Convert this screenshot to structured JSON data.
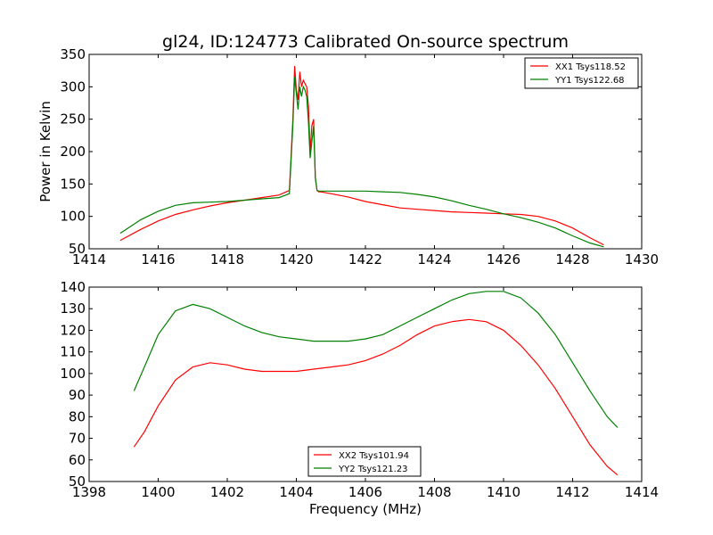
{
  "title": "gl24, ID:124773 Calibrated On-source spectrum",
  "chart_data": [
    {
      "type": "line",
      "ylabel": "Power in Kelvin",
      "xlabel": "",
      "xlim": [
        1414,
        1430
      ],
      "ylim": [
        50,
        350
      ],
      "xticks": [
        1414,
        1416,
        1418,
        1420,
        1422,
        1424,
        1426,
        1428,
        1430
      ],
      "yticks": [
        50,
        100,
        150,
        200,
        250,
        300,
        350
      ],
      "legend_position": "top-right",
      "series": [
        {
          "name": "XX1 Tsys118.52",
          "color": "#ff0000",
          "x": [
            1414.9,
            1415.5,
            1416.0,
            1416.5,
            1417.0,
            1417.5,
            1418.0,
            1418.5,
            1419.0,
            1419.5,
            1419.8,
            1419.9,
            1419.95,
            1420.0,
            1420.05,
            1420.1,
            1420.15,
            1420.2,
            1420.25,
            1420.3,
            1420.35,
            1420.4,
            1420.45,
            1420.5,
            1420.55,
            1420.6,
            1420.65,
            1420.7,
            1420.8,
            1421.0,
            1421.5,
            1422.0,
            1422.5,
            1423.0,
            1423.5,
            1424.0,
            1424.5,
            1425.0,
            1425.5,
            1426.0,
            1426.5,
            1427.0,
            1427.5,
            1428.0,
            1428.5,
            1428.9
          ],
          "values": [
            63,
            80,
            93,
            103,
            110,
            116,
            121,
            125,
            129,
            133,
            140,
            250,
            332,
            295,
            280,
            323,
            300,
            310,
            305,
            300,
            270,
            200,
            240,
            250,
            160,
            140,
            138,
            138,
            137,
            135,
            130,
            123,
            118,
            113,
            111,
            109,
            107,
            106,
            105,
            104,
            103,
            100,
            93,
            82,
            67,
            56
          ]
        },
        {
          "name": "YY1 Tsys122.68",
          "color": "#008000",
          "x": [
            1414.9,
            1415.5,
            1416.0,
            1416.5,
            1417.0,
            1417.5,
            1418.0,
            1418.5,
            1419.0,
            1419.5,
            1419.8,
            1419.9,
            1419.95,
            1420.0,
            1420.05,
            1420.1,
            1420.15,
            1420.2,
            1420.25,
            1420.3,
            1420.35,
            1420.4,
            1420.45,
            1420.5,
            1420.55,
            1420.6,
            1420.65,
            1420.7,
            1420.8,
            1421.0,
            1421.5,
            1422.0,
            1422.5,
            1423.0,
            1423.5,
            1424.0,
            1424.5,
            1425.0,
            1425.5,
            1426.0,
            1426.5,
            1427.0,
            1427.5,
            1428.0,
            1428.5,
            1428.9
          ],
          "values": [
            74,
            95,
            108,
            117,
            121,
            122,
            123,
            125,
            127,
            129,
            135,
            240,
            315,
            290,
            265,
            300,
            285,
            300,
            295,
            285,
            245,
            190,
            215,
            240,
            160,
            140,
            139,
            139,
            139,
            139,
            139,
            139,
            138,
            137,
            134,
            130,
            124,
            117,
            111,
            104,
            98,
            91,
            82,
            70,
            59,
            53
          ]
        }
      ]
    },
    {
      "type": "line",
      "xlabel": "Frequency (MHz)",
      "ylabel": "",
      "xlim": [
        1398,
        1414
      ],
      "ylim": [
        50,
        140
      ],
      "xticks": [
        1398,
        1400,
        1402,
        1404,
        1406,
        1408,
        1410,
        1412,
        1414
      ],
      "yticks": [
        50,
        60,
        70,
        80,
        90,
        100,
        110,
        120,
        130,
        140
      ],
      "legend_position": "bottom-center",
      "series": [
        {
          "name": "XX2 Tsys101.94",
          "color": "#ff0000",
          "x": [
            1399.3,
            1399.6,
            1400.0,
            1400.5,
            1401.0,
            1401.5,
            1402.0,
            1402.5,
            1403.0,
            1403.5,
            1404.0,
            1404.5,
            1405.0,
            1405.5,
            1406.0,
            1406.5,
            1407.0,
            1407.5,
            1408.0,
            1408.5,
            1409.0,
            1409.5,
            1410.0,
            1410.5,
            1411.0,
            1411.5,
            1412.0,
            1412.5,
            1413.0,
            1413.3
          ],
          "values": [
            66,
            73,
            85,
            97,
            103,
            105,
            104,
            102,
            101,
            101,
            101,
            102,
            103,
            104,
            106,
            109,
            113,
            118,
            122,
            124,
            125,
            124,
            120,
            113,
            104,
            93,
            80,
            67,
            57,
            53
          ]
        },
        {
          "name": "YY2 Tsys121.23",
          "color": "#008000",
          "x": [
            1399.3,
            1399.6,
            1400.0,
            1400.5,
            1401.0,
            1401.5,
            1402.0,
            1402.5,
            1403.0,
            1403.5,
            1404.0,
            1404.5,
            1405.0,
            1405.5,
            1406.0,
            1406.5,
            1407.0,
            1407.5,
            1408.0,
            1408.5,
            1409.0,
            1409.5,
            1410.0,
            1410.5,
            1411.0,
            1411.5,
            1412.0,
            1412.5,
            1413.0,
            1413.3
          ],
          "values": [
            92,
            103,
            118,
            129,
            132,
            130,
            126,
            122,
            119,
            117,
            116,
            115,
            115,
            115,
            116,
            118,
            122,
            126,
            130,
            134,
            137,
            138,
            138,
            135,
            128,
            118,
            105,
            92,
            80,
            75
          ]
        }
      ]
    }
  ]
}
